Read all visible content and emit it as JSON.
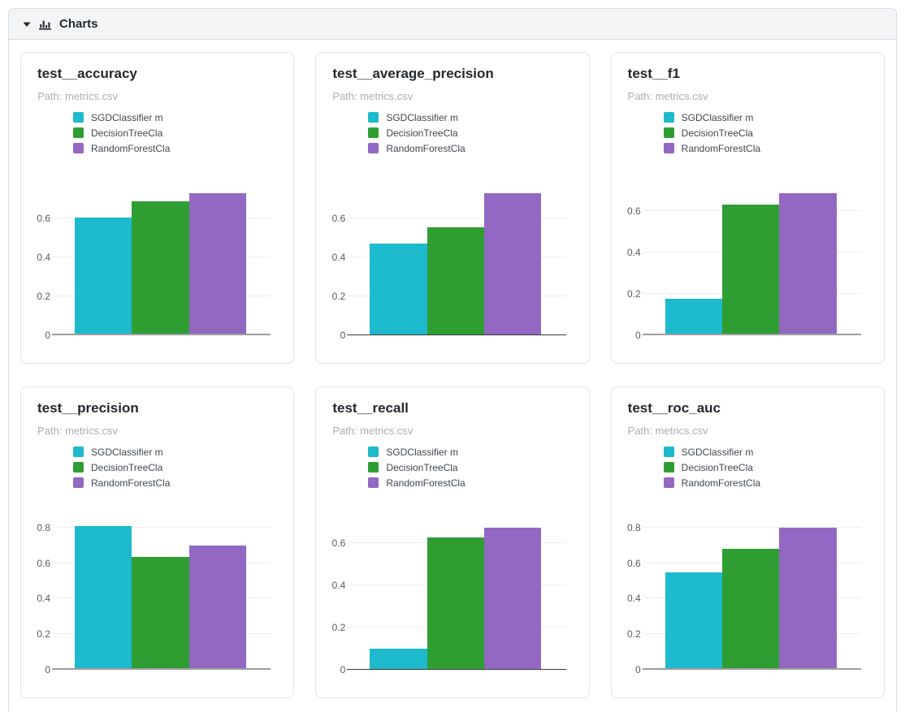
{
  "header": {
    "title": "Charts"
  },
  "legend": {
    "entries": [
      {
        "label": "SGDClassifier m",
        "color": "#1db9cd"
      },
      {
        "label": "DecisionTreeCla",
        "color": "#2e9e33"
      },
      {
        "label": "RandomForestCla",
        "color": "#9268c3"
      }
    ]
  },
  "colors": {
    "series_cyan": "#1db9cd",
    "series_green": "#2e9e33",
    "series_purple": "#9268c3",
    "header_background": "#f3f4f6",
    "border": "#d8dbdf",
    "card_border": "#e3e6e9"
  },
  "chart_data": [
    {
      "type": "bar",
      "title": "test__accuracy",
      "path": "Path: metrics.csv",
      "categories": [
        "SGDClassifier m",
        "DecisionTreeCla",
        "RandomForestCla"
      ],
      "values": [
        0.605,
        0.685,
        0.73
      ],
      "yticks": [
        "0",
        "0.2",
        "0.4",
        "0.6"
      ],
      "ylim": [
        0,
        0.82
      ],
      "baseline": "gray",
      "grid": true,
      "legend_position": "top"
    },
    {
      "type": "bar",
      "title": "test__average_precision",
      "path": "Path: metrics.csv",
      "categories": [
        "SGDClassifier m",
        "DecisionTreeCla",
        "RandomForestCla"
      ],
      "values": [
        0.47,
        0.555,
        0.73
      ],
      "yticks": [
        "0",
        "0.2",
        "0.4",
        "0.6"
      ],
      "ylim": [
        0,
        0.82
      ],
      "baseline": "dark",
      "grid": true,
      "legend_position": "top"
    },
    {
      "type": "bar",
      "title": "test__f1",
      "path": "Path: metrics.csv",
      "categories": [
        "SGDClassifier m",
        "DecisionTreeCla",
        "RandomForestCla"
      ],
      "values": [
        0.175,
        0.63,
        0.685
      ],
      "yticks": [
        "0",
        "0.2",
        "0.4",
        "0.6"
      ],
      "ylim": [
        0,
        0.77
      ],
      "baseline": "gray",
      "grid": true,
      "legend_position": "top"
    },
    {
      "type": "bar",
      "title": "test__precision",
      "path": "Path: metrics.csv",
      "categories": [
        "SGDClassifier m",
        "DecisionTreeCla",
        "RandomForestCla"
      ],
      "values": [
        0.81,
        0.635,
        0.7
      ],
      "yticks": [
        "0",
        "0.2",
        "0.4",
        "0.6",
        "0.8"
      ],
      "ylim": [
        0,
        0.9
      ],
      "baseline": "gray",
      "grid": true,
      "legend_position": "top"
    },
    {
      "type": "bar",
      "title": "test__recall",
      "path": "Path: metrics.csv",
      "categories": [
        "SGDClassifier m",
        "DecisionTreeCla",
        "RandomForestCla"
      ],
      "values": [
        0.1,
        0.63,
        0.675
      ],
      "yticks": [
        "0",
        "0.2",
        "0.4",
        "0.6"
      ],
      "ylim": [
        0,
        0.76
      ],
      "baseline": "dark",
      "grid": true,
      "legend_position": "top"
    },
    {
      "type": "bar",
      "title": "test__roc_auc",
      "path": "Path: metrics.csv",
      "categories": [
        "SGDClassifier m",
        "DecisionTreeCla",
        "RandomForestCla"
      ],
      "values": [
        0.55,
        0.68,
        0.8
      ],
      "yticks": [
        "0",
        "0.2",
        "0.4",
        "0.6",
        "0.8"
      ],
      "ylim": [
        0,
        0.9
      ],
      "baseline": "gray",
      "grid": true,
      "legend_position": "top"
    }
  ]
}
